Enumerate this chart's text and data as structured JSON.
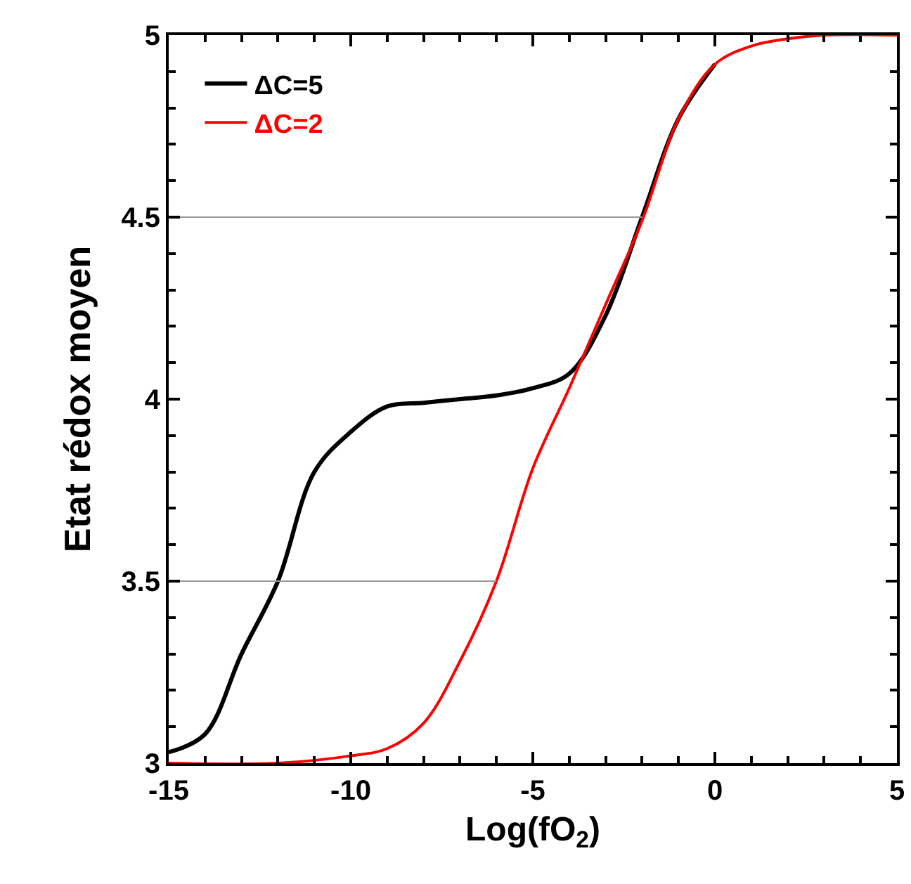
{
  "chart_data": {
    "type": "line",
    "xlabel": "Log(fO$_{2}$)",
    "ylabel": "Etat rédox moyen",
    "xlim": [
      -15,
      5
    ],
    "xticks": [
      -15,
      -10,
      -5,
      0,
      5
    ],
    "ylim": [
      3,
      5
    ],
    "yticks": [
      3,
      3.5,
      4,
      4.5,
      5
    ],
    "grid": false,
    "legend": "top left",
    "series": [
      {
        "name": "ΔC=5",
        "color": "#000000",
        "x": [
          -15,
          -14,
          -13,
          -12,
          -11,
          -10,
          -9,
          -8,
          -7,
          -6,
          -5,
          -4,
          -3,
          -2,
          -1,
          0
        ],
        "values": [
          3.03,
          3.08,
          3.3,
          3.5,
          3.8,
          3.91,
          3.98,
          3.99,
          4.0,
          4.01,
          4.03,
          4.07,
          4.23,
          4.5,
          4.77,
          4.92
        ]
      },
      {
        "name": "ΔC=2",
        "color": "#ff0000",
        "x": [
          -15,
          -12,
          -10,
          -9,
          -8,
          -7,
          -6,
          -5,
          -4,
          -3,
          -2,
          -1,
          0,
          1,
          2,
          3,
          5
        ],
        "values": [
          3.0,
          3.0,
          3.02,
          3.04,
          3.11,
          3.28,
          3.5,
          3.81,
          4.03,
          4.26,
          4.49,
          4.77,
          4.92,
          4.97,
          4.99,
          5.0,
          5.0
        ]
      },
      {
        "color": "#999999",
        "x": [
          -15,
          -2
        ],
        "values": [
          4.5,
          4.5
        ]
      },
      {
        "color": "#999999",
        "x": [
          -15,
          -6
        ],
        "values": [
          3.5,
          3.5
        ]
      }
    ]
  }
}
